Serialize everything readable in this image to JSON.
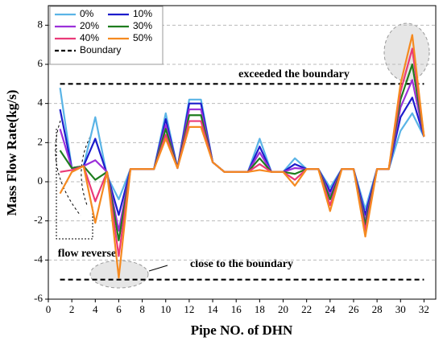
{
  "chart_data": {
    "type": "line",
    "xlabel": "Pipe NO. of DHN",
    "ylabel": "Mass Flow Rate(kg/s)",
    "x": [
      1,
      2,
      3,
      4,
      5,
      6,
      7,
      8,
      9,
      10,
      11,
      12,
      13,
      14,
      15,
      16,
      17,
      18,
      19,
      20,
      21,
      22,
      23,
      24,
      25,
      26,
      27,
      28,
      29,
      30,
      31,
      32
    ],
    "series": [
      {
        "name": "0%",
        "color": "#5ab4e6",
        "values": [
          4.8,
          0.7,
          0.8,
          3.3,
          0.3,
          -0.9,
          0.65,
          0.65,
          0.65,
          3.5,
          0.7,
          4.2,
          4.2,
          1.0,
          0.5,
          0.5,
          0.5,
          2.2,
          0.5,
          0.5,
          1.2,
          0.65,
          0.65,
          -0.3,
          0.65,
          0.65,
          -1.4,
          0.65,
          0.65,
          2.6,
          3.5,
          2.3
        ]
      },
      {
        "name": "10%",
        "color": "#1c1ccc",
        "values": [
          3.7,
          0.7,
          0.8,
          2.2,
          0.4,
          -1.7,
          0.65,
          0.65,
          0.65,
          3.2,
          0.7,
          4.0,
          4.0,
          1.0,
          0.5,
          0.5,
          0.5,
          1.8,
          0.5,
          0.5,
          0.9,
          0.65,
          0.65,
          -0.5,
          0.65,
          0.65,
          -1.7,
          0.65,
          0.65,
          3.3,
          4.3,
          2.3
        ]
      },
      {
        "name": "20%",
        "color": "#9b30d9",
        "values": [
          2.7,
          0.7,
          0.8,
          1.1,
          0.5,
          -2.5,
          0.65,
          0.65,
          0.65,
          2.9,
          0.7,
          3.7,
          3.7,
          1.0,
          0.5,
          0.5,
          0.5,
          1.5,
          0.5,
          0.5,
          0.7,
          0.65,
          0.65,
          -0.7,
          0.65,
          0.65,
          -2.0,
          0.65,
          0.65,
          3.8,
          5.2,
          2.3
        ]
      },
      {
        "name": "30%",
        "color": "#1e7d1e",
        "values": [
          1.6,
          0.7,
          0.8,
          0.1,
          0.5,
          -3.0,
          0.65,
          0.65,
          0.65,
          2.7,
          0.7,
          3.4,
          3.4,
          1.0,
          0.5,
          0.5,
          0.5,
          1.2,
          0.5,
          0.5,
          0.4,
          0.65,
          0.65,
          -0.9,
          0.65,
          0.65,
          -2.2,
          0.65,
          0.65,
          4.2,
          6.0,
          2.3
        ]
      },
      {
        "name": "40%",
        "color": "#ea3a78",
        "values": [
          0.5,
          0.6,
          0.8,
          -1.0,
          0.5,
          -3.8,
          0.65,
          0.65,
          0.65,
          2.4,
          0.7,
          3.1,
          3.1,
          1.0,
          0.5,
          0.5,
          0.5,
          0.9,
          0.5,
          0.5,
          0.1,
          0.65,
          0.65,
          -1.2,
          0.65,
          0.65,
          -2.5,
          0.65,
          0.65,
          4.6,
          6.8,
          2.3
        ]
      },
      {
        "name": "50%",
        "color": "#f58a20",
        "values": [
          -0.6,
          0.5,
          0.8,
          -2.1,
          0.5,
          -4.9,
          0.65,
          0.65,
          0.65,
          2.2,
          0.7,
          2.8,
          2.8,
          1.0,
          0.5,
          0.5,
          0.5,
          0.6,
          0.5,
          0.5,
          -0.2,
          0.65,
          0.65,
          -1.5,
          0.65,
          0.65,
          -2.8,
          0.65,
          0.65,
          5.0,
          7.5,
          2.3
        ]
      }
    ],
    "boundary": {
      "name": "Boundary",
      "values": [
        5,
        -5
      ]
    },
    "annotations": [
      "exceeded the boundary",
      "close to the boundary",
      "flow reverse"
    ],
    "xlim": [
      0,
      33
    ],
    "xticks": [
      0,
      2,
      4,
      6,
      8,
      10,
      12,
      14,
      16,
      18,
      20,
      22,
      24,
      26,
      28,
      30,
      32
    ],
    "ylim": [
      -6,
      9
    ],
    "yticks": [
      -6,
      -4,
      -2,
      0,
      2,
      4,
      6,
      8
    ],
    "grid": true,
    "legend": "upper left"
  }
}
